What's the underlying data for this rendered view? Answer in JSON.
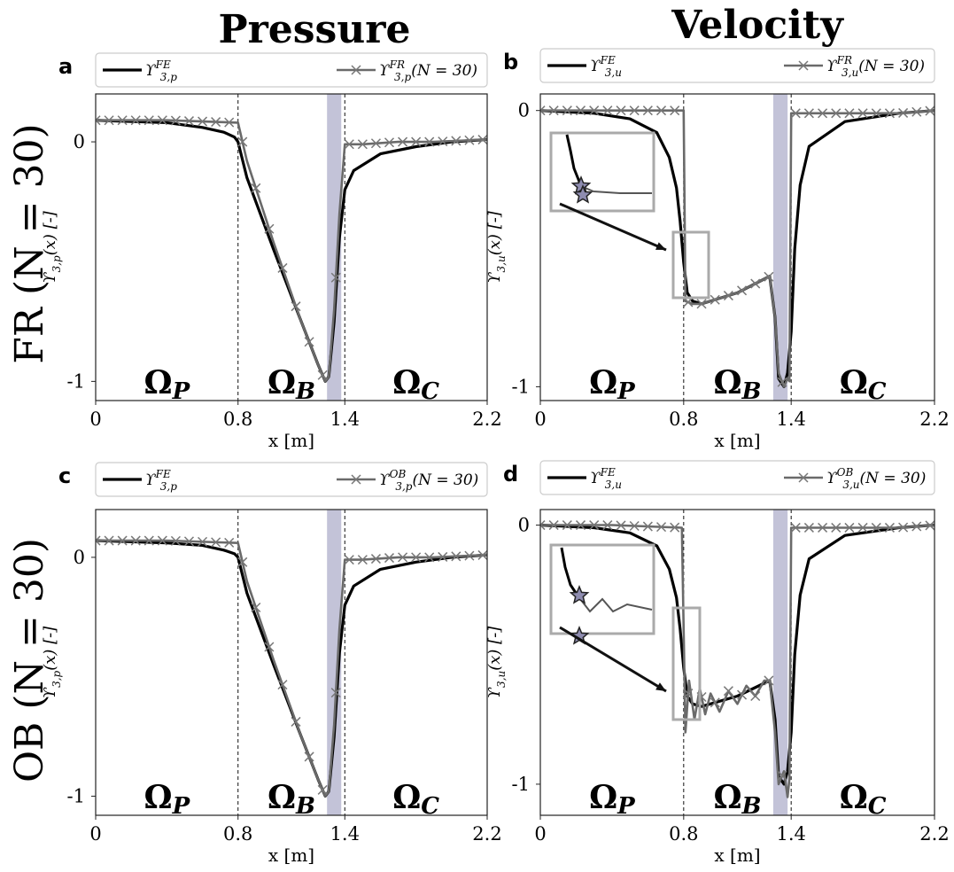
{
  "column_titles": [
    "Pressure",
    "Velocity"
  ],
  "row_titles": [
    "FR (N = 30)",
    "OB (N = 30)"
  ],
  "chart_data": [
    {
      "panel": "a",
      "type": "line",
      "legend": [
        "ϒ_{3,p}^{FE}",
        "ϒ_{3,p}^{FR}(N = 30)"
      ],
      "legend_placement": "top (above plot)",
      "xlabel": "x [m]",
      "ylabel": "ϒ_{3,p}(x) [-]",
      "xlim": [
        0,
        2.2
      ],
      "ylim": [
        -1.08,
        0.2
      ],
      "xticks": [
        "0",
        "0.8",
        "1.4",
        "2.2"
      ],
      "yticks": [
        "0",
        "-1"
      ],
      "region_labels": [
        "Ω_P",
        "Ω_B",
        "Ω_C"
      ],
      "shaded_band": [
        1.3,
        1.38
      ],
      "vlines": [
        0.8,
        1.4
      ],
      "series": [
        {
          "name": "FE",
          "x": [
            0,
            0.4,
            0.6,
            0.72,
            0.78,
            0.8,
            0.85,
            1.0,
            1.15,
            1.25,
            1.29,
            1.31,
            1.34,
            1.37,
            1.4,
            1.45,
            1.6,
            1.8,
            2.0,
            2.2
          ],
          "y": [
            0.09,
            0.08,
            0.06,
            0.04,
            0.02,
            0.0,
            -0.15,
            -0.45,
            -0.74,
            -0.93,
            -1.0,
            -0.98,
            -0.75,
            -0.4,
            -0.2,
            -0.12,
            -0.05,
            -0.02,
            0.0,
            0.01
          ]
        },
        {
          "name": "FR (N = 30)",
          "x": [
            0,
            0.4,
            0.8,
            0.85,
            1.0,
            1.15,
            1.25,
            1.29,
            1.31,
            1.34,
            1.37,
            1.4,
            1.5,
            1.7,
            1.9,
            2.2
          ],
          "y": [
            0.09,
            0.09,
            0.08,
            -0.08,
            -0.42,
            -0.74,
            -0.93,
            -1.0,
            -0.98,
            -0.7,
            -0.3,
            -0.01,
            -0.01,
            0.0,
            0.0,
            0.01
          ]
        }
      ]
    },
    {
      "panel": "b",
      "type": "line",
      "legend": [
        "ϒ_{3,u}^{FE}",
        "ϒ_{3,u}^{FR}(N = 30)"
      ],
      "legend_placement": "top (above plot)",
      "xlabel": "x [m]",
      "ylabel": "ϒ_{3,u}(x) [-]",
      "xlim": [
        0,
        2.2
      ],
      "ylim": [
        -1.05,
        0.06
      ],
      "xticks": [
        "0",
        "0.8",
        "1.4",
        "2.2"
      ],
      "yticks": [
        "0",
        "-1"
      ],
      "region_labels": [
        "Ω_P",
        "Ω_B",
        "Ω_C"
      ],
      "shaded_band": [
        1.3,
        1.38
      ],
      "vlines": [
        0.8,
        1.4
      ],
      "series": [
        {
          "name": "FE",
          "x": [
            0,
            0.3,
            0.5,
            0.65,
            0.72,
            0.76,
            0.78,
            0.8,
            0.82,
            0.85,
            0.9,
            1.1,
            1.28,
            1.31,
            1.33,
            1.36,
            1.38,
            1.4,
            1.42,
            1.45,
            1.5,
            1.7,
            2.0,
            2.2
          ],
          "y": [
            0.0,
            -0.01,
            -0.03,
            -0.08,
            -0.17,
            -0.28,
            -0.4,
            -0.55,
            -0.66,
            -0.69,
            -0.7,
            -0.66,
            -0.6,
            -0.75,
            -0.97,
            -1.0,
            -0.95,
            -0.8,
            -0.5,
            -0.27,
            -0.13,
            -0.04,
            -0.01,
            0.0
          ]
        },
        {
          "name": "FR (N = 30)",
          "x": [
            0,
            0.4,
            0.8,
            0.81,
            0.85,
            0.9,
            1.1,
            1.28,
            1.31,
            1.33,
            1.36,
            1.38,
            1.39,
            1.4,
            1.7,
            2.0,
            2.2
          ],
          "y": [
            0.0,
            0.0,
            0.0,
            -0.69,
            -0.7,
            -0.7,
            -0.66,
            -0.6,
            -0.75,
            -0.95,
            -1.0,
            -0.97,
            -0.98,
            -0.01,
            -0.01,
            -0.01,
            0.0
          ]
        }
      ]
    },
    {
      "panel": "c",
      "type": "line",
      "legend": [
        "ϒ_{3,p}^{FE}",
        "ϒ_{3,p}^{OB}(N = 30)"
      ],
      "legend_placement": "top (above plot)",
      "xlabel": "x [m]",
      "ylabel": "ϒ_{3,p}(x) [-]",
      "xlim": [
        0,
        2.2
      ],
      "ylim": [
        -1.08,
        0.2
      ],
      "xticks": [
        "0",
        "0.8",
        "1.4",
        "2.2"
      ],
      "yticks": [
        "0",
        "-1"
      ],
      "region_labels": [
        "Ω_P",
        "Ω_B",
        "Ω_C"
      ],
      "shaded_band": [
        1.3,
        1.38
      ],
      "vlines": [
        0.8,
        1.4
      ],
      "series": [
        {
          "name": "FE",
          "x": [
            0,
            0.4,
            0.6,
            0.72,
            0.78,
            0.8,
            0.85,
            1.0,
            1.15,
            1.25,
            1.29,
            1.31,
            1.34,
            1.37,
            1.4,
            1.45,
            1.6,
            1.8,
            2.0,
            2.2
          ],
          "y": [
            0.07,
            0.06,
            0.05,
            0.03,
            0.015,
            0.0,
            -0.15,
            -0.45,
            -0.74,
            -0.93,
            -1.0,
            -0.98,
            -0.75,
            -0.4,
            -0.2,
            -0.12,
            -0.05,
            -0.02,
            0.0,
            0.01
          ]
        },
        {
          "name": "OB (N = 30)",
          "x": [
            0,
            0.4,
            0.8,
            0.85,
            1.0,
            1.15,
            1.25,
            1.29,
            1.31,
            1.34,
            1.37,
            1.4,
            1.5,
            1.7,
            1.9,
            2.2
          ],
          "y": [
            0.07,
            0.07,
            0.06,
            -0.1,
            -0.43,
            -0.74,
            -0.93,
            -1.0,
            -0.98,
            -0.7,
            -0.3,
            -0.01,
            -0.01,
            0.0,
            0.0,
            0.01
          ]
        }
      ]
    },
    {
      "panel": "d",
      "type": "line",
      "legend": [
        "ϒ_{3,u}^{FE}",
        "ϒ_{3,u}^{OB}(N = 30)"
      ],
      "legend_placement": "top (above plot)",
      "xlabel": "x [m]",
      "ylabel": "ϒ_{3,u}(x) [-]",
      "xlim": [
        0,
        2.2
      ],
      "ylim": [
        -1.12,
        0.06
      ],
      "xticks": [
        "0",
        "0.8",
        "1.4",
        "2.2"
      ],
      "yticks": [
        "0",
        "-1"
      ],
      "region_labels": [
        "Ω_P",
        "Ω_B",
        "Ω_C"
      ],
      "shaded_band": [
        1.3,
        1.38
      ],
      "vlines": [
        0.8,
        1.4
      ],
      "series": [
        {
          "name": "FE",
          "x": [
            0,
            0.3,
            0.5,
            0.65,
            0.72,
            0.76,
            0.78,
            0.8,
            0.82,
            0.85,
            0.9,
            1.1,
            1.28,
            1.31,
            1.33,
            1.36,
            1.38,
            1.4,
            1.42,
            1.45,
            1.5,
            1.7,
            2.0,
            2.2
          ],
          "y": [
            0.0,
            -0.01,
            -0.03,
            -0.08,
            -0.17,
            -0.28,
            -0.4,
            -0.55,
            -0.66,
            -0.69,
            -0.7,
            -0.66,
            -0.6,
            -0.75,
            -0.97,
            -1.0,
            -0.95,
            -0.8,
            -0.5,
            -0.27,
            -0.13,
            -0.04,
            -0.01,
            0.0
          ]
        },
        {
          "name": "OB (N = 30)",
          "x": [
            0,
            0.4,
            0.79,
            0.81,
            0.83,
            0.86,
            0.89,
            0.92,
            0.95,
            1.0,
            1.05,
            1.1,
            1.15,
            1.2,
            1.25,
            1.28,
            1.31,
            1.33,
            1.36,
            1.38,
            1.39,
            1.4,
            1.7,
            2.0,
            2.2
          ],
          "y": [
            0.0,
            0.0,
            -0.01,
            -0.8,
            -0.6,
            -0.75,
            -0.63,
            -0.73,
            -0.65,
            -0.72,
            -0.64,
            -0.69,
            -0.62,
            -0.66,
            -0.6,
            -0.6,
            -0.8,
            -1.0,
            -0.95,
            -1.05,
            -0.98,
            -0.01,
            -0.01,
            -0.01,
            0.0
          ]
        }
      ]
    }
  ]
}
